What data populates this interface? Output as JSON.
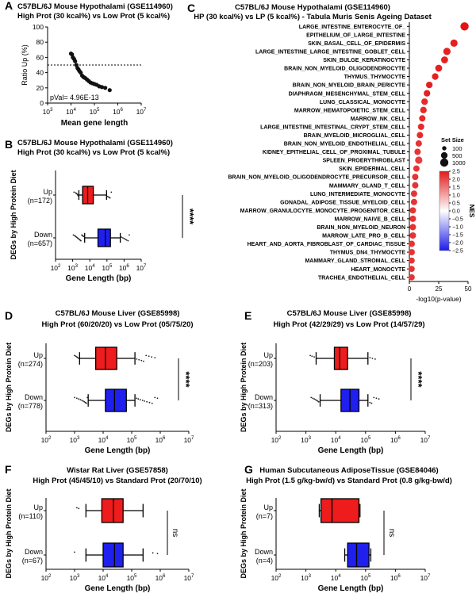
{
  "chart_data": [
    {
      "id": "A",
      "panel_label": "A",
      "type": "scatter",
      "title_line1": "C57BL/6J Mouse Hypothalami (GSE114960)",
      "title_line2": "High Prot (30 kcal%) vs Low Prot (5 kcal%)",
      "xlabel": "Mean gene length",
      "ylabel": "Ratio Up (%)",
      "xscale": "log",
      "xlim_exp": [
        3,
        7
      ],
      "xtick_labels": [
        "10",
        "10",
        "10",
        "10",
        "10"
      ],
      "xtick_exps": [
        "3",
        "4",
        "5",
        "6",
        "7"
      ],
      "ylim": [
        0,
        100
      ],
      "ytick_labels": [
        "0",
        "20",
        "40",
        "60",
        "80",
        "100"
      ],
      "reference_line": 50,
      "annotation": "pVal= 4.96E-13",
      "points": [
        {
          "x": 10000,
          "y": 65
        },
        {
          "x": 11000,
          "y": 64
        },
        {
          "x": 12000,
          "y": 60
        },
        {
          "x": 13500,
          "y": 58
        },
        {
          "x": 15000,
          "y": 55
        },
        {
          "x": 17000,
          "y": 50
        },
        {
          "x": 19000,
          "y": 46
        },
        {
          "x": 21000,
          "y": 44
        },
        {
          "x": 23000,
          "y": 42
        },
        {
          "x": 26000,
          "y": 40
        },
        {
          "x": 30000,
          "y": 36
        },
        {
          "x": 35000,
          "y": 34
        },
        {
          "x": 40000,
          "y": 33
        },
        {
          "x": 48000,
          "y": 31
        },
        {
          "x": 57000,
          "y": 29
        },
        {
          "x": 68000,
          "y": 27
        },
        {
          "x": 82000,
          "y": 26
        },
        {
          "x": 100000,
          "y": 25
        },
        {
          "x": 125000,
          "y": 24
        },
        {
          "x": 160000,
          "y": 22
        },
        {
          "x": 210000,
          "y": 21
        },
        {
          "x": 290000,
          "y": 20
        },
        {
          "x": 450000,
          "y": 17
        }
      ]
    },
    {
      "id": "B",
      "panel_label": "B",
      "type": "boxplot",
      "title_line1": "C57BL/6J Mouse Hypothalami (GSE114960)",
      "title_line2": "High Prot (30 kcal%) vs Low Prot (5 kcal%)",
      "xlabel": "Gene Length (bp)",
      "ylabel": "DEGs by High Protein Diet",
      "xscale": "log",
      "xlim_exp": [
        2,
        7
      ],
      "xtick_labels": [
        "10",
        "10",
        "10",
        "10",
        "10",
        "10"
      ],
      "xtick_exps": [
        "2",
        "3",
        "4",
        "5",
        "6",
        "7"
      ],
      "significance": "****",
      "groups": [
        {
          "label": "Up",
          "n": "(n=172)",
          "color": "#ee1c1c",
          "whisker_low": 2300,
          "q1": 3800,
          "median": 7500,
          "q3": 16000,
          "whisker_high": 95000,
          "outliers_low": [
            1200,
            1500,
            1700,
            1900,
            2000,
            2100
          ],
          "outliers_high": [
            110000,
            130000,
            150000,
            180000
          ]
        },
        {
          "label": "Down",
          "n": "(n=657)",
          "color": "#1f1fee",
          "whisker_low": 5000,
          "q1": 30000,
          "median": 80000,
          "q3": 160000,
          "whisker_high": 600000,
          "outliers_low": [
            1100,
            1300,
            1500,
            1700,
            1900,
            2100,
            2400,
            2700,
            3000,
            3400,
            3800,
            4300
          ],
          "outliers_high": [
            700000,
            850000,
            1000000,
            1200000,
            1400000,
            1700000,
            2000000
          ]
        }
      ]
    },
    {
      "id": "C",
      "panel_label": "C",
      "type": "dotplot",
      "title_line1": "C57BL/6J Mouse Hypothalami (GSE114960)",
      "title_line2": "HP (30 kcal%) vs LP (5 kcal%) - Tabula Muris Senis Ageing Dataset",
      "xlabel": "-log10(p-value)",
      "xlim": [
        0,
        50
      ],
      "xtick_labels": [
        "0",
        "25",
        "50"
      ],
      "size_legend_title": "Set Size",
      "size_legend": [
        "100",
        "500",
        "1000"
      ],
      "color_legend_title": "NES",
      "nes_range": [
        -2.5,
        2.5
      ],
      "nes_ticks": [
        "2.5",
        "2.0",
        "1.5",
        "1.0",
        "0.5",
        "0.0",
        "−0.5",
        "−1.0",
        "−1.5",
        "−2.0",
        "−2.5"
      ],
      "categories": [
        "LARGE_INTESTINE_ENTEROCYTE_OF_",
        "EPITHELIUM_OF_LARGE_INTESTINE",
        "SKIN_BASAL_CELL_OF_EPIDERMIS",
        "LARGE_INTESTINE_LARGE_INTESTINE_GOBLET_CELL",
        "SKIN_BULGE_KERATINOCYTE",
        "BRAIN_NON_MYELOID_OLIGODENDROCYTE",
        "THYMUS_THYMOCYTE",
        "BRAIN_NON_MYELOID_BRAIN_PERICYTE",
        "DIAPHRAGM_MESENCHYMAL_STEM_CELL",
        "LUNG_CLASSICAL_MONOCYTE",
        "MARROW_HEMATOPOIETIC_STEM_CELL",
        "MARROW_NK_CELL",
        "LARGE_INTESTINE_INTESTINAL_CRYPT_STEM_CELL",
        "BRAIN_MYELOID_MICROGLIAL_CELL",
        "BRAIN_NON_MYELOID_ENDOTHELIAL_CELL",
        "KIDNEY_EPITHELIAL_CELL_OF_PROXIMAL_TUBULE",
        "SPLEEN_PROERYTHROBLAST",
        "SKIN_EPIDERMAL_CELL",
        "BRAIN_NON_MYELOID_OLIGODENDROCYTE_PRECURSOR_CELL",
        "MAMMARY_GLAND_T_CELL",
        "LUNG_INTERMEDIATE_MONOCYTE",
        "GONADAL_ADIPOSE_TISSUE_MYELOID_CELL",
        "MARROW_GRANULOCYTE_MONOCYTE_PROGENITOR_CELL",
        "MARROW_NAIVE_B_CELL",
        "BRAIN_NON_MYELOID_NEURON",
        "MARROW_LATE_PRO_B_CELL",
        "HEART_AND_AORTA_FIBROBLAST_OF_CARDIAC_TISSUE",
        "THYMUS_DN4_THYMOCYTE",
        "MAMMARY_GLAND_STROMAL_CELL",
        "HEART_MONOCYTE",
        "TRACHEA_ENDOTHELIAL_CELL"
      ],
      "dots": [
        {
          "row": 0,
          "value": 47,
          "size": 1000,
          "nes": 2.3
        },
        {
          "row": 2,
          "value": 38,
          "size": 700,
          "nes": 2.2
        },
        {
          "row": 3,
          "value": 32,
          "size": 700,
          "nes": 2.2
        },
        {
          "row": 4,
          "value": 30,
          "size": 600,
          "nes": 2.2
        },
        {
          "row": 5,
          "value": 25,
          "size": 600,
          "nes": 2.2
        },
        {
          "row": 6,
          "value": 22,
          "size": 500,
          "nes": 2.2
        },
        {
          "row": 7,
          "value": 17,
          "size": 500,
          "nes": 2.2
        },
        {
          "row": 8,
          "value": 15,
          "size": 500,
          "nes": 2.2
        },
        {
          "row": 9,
          "value": 13,
          "size": 500,
          "nes": 2.1
        },
        {
          "row": 10,
          "value": 12,
          "size": 500,
          "nes": 2.1
        },
        {
          "row": 11,
          "value": 11,
          "size": 450,
          "nes": 2.1
        },
        {
          "row": 12,
          "value": 10,
          "size": 450,
          "nes": 2.1
        },
        {
          "row": 13,
          "value": 9,
          "size": 450,
          "nes": 2.1
        },
        {
          "row": 14,
          "value": 8,
          "size": 450,
          "nes": 2.0
        },
        {
          "row": 15,
          "value": 7,
          "size": 450,
          "nes": 2.0
        },
        {
          "row": 16,
          "value": 8,
          "size": 700,
          "nes": 1.9
        },
        {
          "row": 17,
          "value": 6,
          "size": 450,
          "nes": 2.0
        },
        {
          "row": 18,
          "value": 5,
          "size": 450,
          "nes": 2.0
        },
        {
          "row": 19,
          "value": 5,
          "size": 450,
          "nes": 2.0
        },
        {
          "row": 20,
          "value": 4,
          "size": 450,
          "nes": 2.0
        },
        {
          "row": 21,
          "value": 4,
          "size": 450,
          "nes": 2.0
        },
        {
          "row": 22,
          "value": 3,
          "size": 450,
          "nes": 2.0
        },
        {
          "row": 23,
          "value": 3,
          "size": 450,
          "nes": 2.0
        },
        {
          "row": 24,
          "value": 3,
          "size": 450,
          "nes": 2.0
        },
        {
          "row": 25,
          "value": 3,
          "size": 450,
          "nes": 2.0
        },
        {
          "row": 26,
          "value": 2,
          "size": 450,
          "nes": 2.0
        },
        {
          "row": 27,
          "value": 2,
          "size": 450,
          "nes": 2.0
        },
        {
          "row": 28,
          "value": 2,
          "size": 400,
          "nes": 2.0
        },
        {
          "row": 29,
          "value": 2,
          "size": 400,
          "nes": 2.0
        },
        {
          "row": 30,
          "value": 2,
          "size": 400,
          "nes": 2.0
        }
      ]
    },
    {
      "id": "D",
      "panel_label": "D",
      "type": "boxplot",
      "title_line1": "C57BL/6J Mouse Liver (GSE85998)",
      "title_line2": "High Prot (60/20/20) vs Low Prot (05/75/20)",
      "xlabel": "Gene Length (bp)",
      "ylabel": "DEGs by High Protein Diet",
      "xscale": "log",
      "xlim_exp": [
        2,
        7
      ],
      "xtick_labels": [
        "10",
        "10",
        "10",
        "10",
        "10",
        "10"
      ],
      "xtick_exps": [
        "2",
        "3",
        "4",
        "5",
        "6",
        "7"
      ],
      "significance": "****",
      "groups": [
        {
          "label": "Up",
          "n": "(n=274)",
          "color": "#ee1c1c",
          "whisker_low": 1500,
          "q1": 5500,
          "median": 12000,
          "q3": 30000,
          "whisker_high": 130000,
          "outliers_low": [
            1000,
            1100,
            1200,
            1300,
            1400
          ],
          "outliers_high": [
            150000,
            180000,
            220000,
            260000,
            320000,
            400000,
            500000,
            650000
          ]
        },
        {
          "label": "Down",
          "n": "(n=778)",
          "color": "#1f1fee",
          "whisker_low": 3000,
          "q1": 12000,
          "median": 25000,
          "q3": 65000,
          "whisker_high": 130000,
          "outliers_low": [
            1000,
            1200,
            1400,
            1600,
            1800,
            2000,
            2200,
            2400,
            2600,
            2800
          ],
          "outliers_high": [
            150000,
            170000,
            200000,
            240000,
            280000,
            340000,
            420000,
            520000,
            650000,
            800000
          ]
        }
      ]
    },
    {
      "id": "E",
      "panel_label": "E",
      "type": "boxplot",
      "title_line1": "C57BL/6J Mouse Liver (GSE85998)",
      "title_line2": "High Prot (42/29/29) vs Low Prot (14/57/29)",
      "xlabel": "Gene Length (bp)",
      "ylabel": "DEGs by High Protein Diet",
      "xscale": "log",
      "xlim_exp": [
        2,
        7
      ],
      "xtick_labels": [
        "10",
        "10",
        "10",
        "10",
        "10",
        "10"
      ],
      "xtick_exps": [
        "2",
        "3",
        "4",
        "5",
        "6",
        "7"
      ],
      "significance": "****",
      "groups": [
        {
          "label": "Up",
          "n": "(n=203)",
          "color": "#ee1c1c",
          "whisker_low": 2200,
          "q1": 9000,
          "median": 13500,
          "q3": 25000,
          "whisker_high": 120000,
          "outliers_low": [
            1400,
            1600,
            1900
          ],
          "outliers_high": [
            140000,
            170000,
            210000
          ]
        },
        {
          "label": "Down",
          "n": "(n=313)",
          "color": "#1f1fee",
          "whisker_low": 3000,
          "q1": 15000,
          "median": 30000,
          "q3": 60000,
          "whisker_high": 120000,
          "outliers_low": [
            1500,
            1700,
            1900,
            2100,
            2300,
            2500,
            2700
          ],
          "outliers_high": [
            140000,
            160000,
            190000,
            230000,
            280000
          ]
        }
      ]
    },
    {
      "id": "F",
      "panel_label": "F",
      "type": "boxplot",
      "title_line1": "Wistar Rat Liver (GSE57858)",
      "title_line2": "High Prot (45/45/10) vs Standard Prot (20/70/10)",
      "xlabel": "Gene Length (bp)",
      "ylabel": "DEGs by High Protein Diet",
      "xscale": "log",
      "xlim_exp": [
        2,
        7
      ],
      "xtick_labels": [
        "10",
        "10",
        "10",
        "10",
        "10",
        "10"
      ],
      "xtick_exps": [
        "2",
        "3",
        "4",
        "5",
        "6",
        "7"
      ],
      "significance": "ns",
      "groups": [
        {
          "label": "Up",
          "n": "(n=110)",
          "color": "#ee1c1c",
          "whisker_low": 2500,
          "q1": 9000,
          "median": 23000,
          "q3": 50000,
          "whisker_high": 250000,
          "outliers_low": [
            1200,
            1400
          ],
          "outliers_high": []
        },
        {
          "label": "Down",
          "n": "(n=67)",
          "color": "#1f1fee",
          "whisker_low": 2500,
          "q1": 10000,
          "median": 25000,
          "q3": 50000,
          "whisker_high": 250000,
          "outliers_low": [
            1000
          ],
          "outliers_high": [
            550000,
            800000
          ]
        }
      ]
    },
    {
      "id": "G",
      "panel_label": "G",
      "type": "boxplot",
      "title_line1": "Human Subcutaneous AdiposeTissue (GSE84046)",
      "title_line2": "High Prot (1.5 g/kg-bw/d) vs Standard Prot (0.8 g/kg-bw/d)",
      "xlabel": "Gene Length (bp)",
      "ylabel": "DEGs by High Protein Diet",
      "xscale": "log",
      "xlim_exp": [
        2,
        7
      ],
      "xtick_labels": [
        "10",
        "10",
        "10",
        "10",
        "10",
        "10"
      ],
      "xtick_exps": [
        "2",
        "3",
        "4",
        "5",
        "6",
        "7"
      ],
      "significance": "ns",
      "groups": [
        {
          "label": "Up",
          "n": "(n=7)",
          "color": "#ee1c1c",
          "whisker_low": 2800,
          "q1": 3200,
          "median": 7500,
          "q3": 60000,
          "whisker_high": 65000,
          "outliers_low": [],
          "outliers_high": []
        },
        {
          "label": "Down",
          "n": "(n=4)",
          "color": "#1f1fee",
          "whisker_low": 20000,
          "q1": 25000,
          "median": 50000,
          "q3": 130000,
          "whisker_high": 150000,
          "outliers_low": [],
          "outliers_high": []
        }
      ]
    }
  ]
}
